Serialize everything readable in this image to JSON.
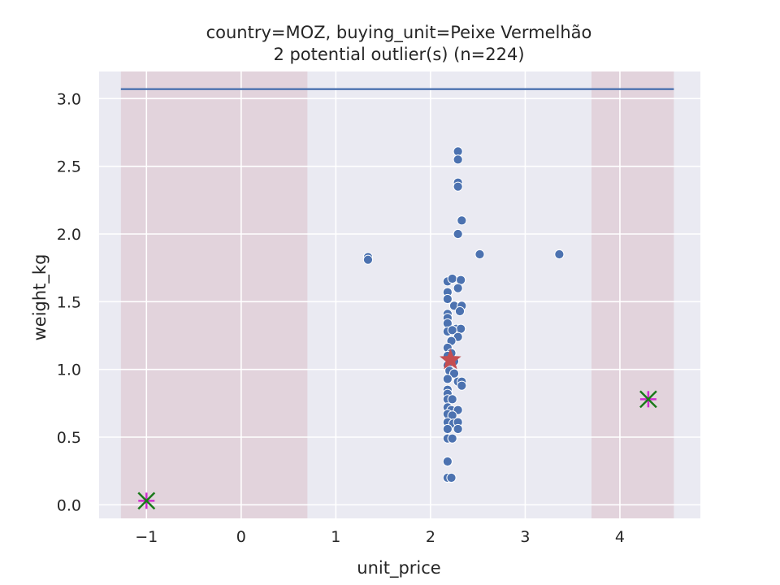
{
  "chart_data": {
    "type": "scatter",
    "title": "country=MOZ, buying_unit=Peixe Vermelhão",
    "subtitle": "2 potential outlier(s) (n=224)",
    "xlabel": "unit_price",
    "ylabel": "weight_kg",
    "xlim": [
      -1.5,
      4.85
    ],
    "ylim": [
      -0.1,
      3.2
    ],
    "xticks": [
      -1,
      0,
      1,
      2,
      3,
      4
    ],
    "xtick_labels": [
      "−1",
      "0",
      "1",
      "2",
      "3",
      "4"
    ],
    "yticks": [
      0.0,
      0.5,
      1.0,
      1.5,
      2.0,
      2.5,
      3.0
    ],
    "ytick_labels": [
      "0.0",
      "0.5",
      "1.0",
      "1.5",
      "2.0",
      "2.5",
      "3.0"
    ],
    "grid": true,
    "colors": {
      "background": "#eaeaf2",
      "grid": "#ffffff",
      "points": "#4c72b0",
      "outlier_band": "#e2d3dc",
      "reference_line": "#4c72b0",
      "median_marker": "#c44e52",
      "outlier_x": "#1a7a1a",
      "outlier_plus": "#d02ed0"
    },
    "outlier_bands": [
      {
        "x0": -1.27,
        "x1": 0.7
      },
      {
        "x0": 3.7,
        "x1": 4.57
      }
    ],
    "reference_line": {
      "y": 3.07,
      "x0": -1.27,
      "x1": 4.57
    },
    "median_marker": {
      "x": 2.21,
      "y": 1.07
    },
    "outliers": [
      {
        "x": -1.0,
        "y": 0.03
      },
      {
        "x": 4.3,
        "y": 0.78
      }
    ],
    "points": [
      {
        "x": 2.29,
        "y": 2.61
      },
      {
        "x": 2.29,
        "y": 2.55
      },
      {
        "x": 2.29,
        "y": 2.38
      },
      {
        "x": 2.29,
        "y": 2.35
      },
      {
        "x": 2.33,
        "y": 2.1
      },
      {
        "x": 2.29,
        "y": 2.0
      },
      {
        "x": 2.52,
        "y": 1.85
      },
      {
        "x": 3.36,
        "y": 1.85
      },
      {
        "x": 1.34,
        "y": 1.83
      },
      {
        "x": 1.34,
        "y": 1.81
      },
      {
        "x": 2.18,
        "y": 1.65
      },
      {
        "x": 2.23,
        "y": 1.67
      },
      {
        "x": 2.32,
        "y": 1.66
      },
      {
        "x": 2.29,
        "y": 1.6
      },
      {
        "x": 2.18,
        "y": 1.57
      },
      {
        "x": 2.18,
        "y": 1.52
      },
      {
        "x": 2.25,
        "y": 1.47
      },
      {
        "x": 2.33,
        "y": 1.47
      },
      {
        "x": 2.31,
        "y": 1.43
      },
      {
        "x": 2.18,
        "y": 1.41
      },
      {
        "x": 2.18,
        "y": 1.38
      },
      {
        "x": 2.18,
        "y": 1.34
      },
      {
        "x": 2.27,
        "y": 1.3
      },
      {
        "x": 2.32,
        "y": 1.3
      },
      {
        "x": 2.18,
        "y": 1.28
      },
      {
        "x": 2.23,
        "y": 1.29
      },
      {
        "x": 2.29,
        "y": 1.24
      },
      {
        "x": 2.22,
        "y": 1.21
      },
      {
        "x": 2.18,
        "y": 1.16
      },
      {
        "x": 2.22,
        "y": 1.12
      },
      {
        "x": 2.18,
        "y": 1.1
      },
      {
        "x": 2.25,
        "y": 1.06
      },
      {
        "x": 2.18,
        "y": 1.03
      },
      {
        "x": 2.2,
        "y": 0.99
      },
      {
        "x": 2.25,
        "y": 0.97
      },
      {
        "x": 2.18,
        "y": 0.93
      },
      {
        "x": 2.29,
        "y": 0.91
      },
      {
        "x": 2.33,
        "y": 0.91
      },
      {
        "x": 2.33,
        "y": 0.88
      },
      {
        "x": 2.18,
        "y": 0.85
      },
      {
        "x": 2.18,
        "y": 0.82
      },
      {
        "x": 2.18,
        "y": 0.78
      },
      {
        "x": 2.23,
        "y": 0.78
      },
      {
        "x": 2.18,
        "y": 0.72
      },
      {
        "x": 2.22,
        "y": 0.7
      },
      {
        "x": 2.29,
        "y": 0.7
      },
      {
        "x": 2.18,
        "y": 0.67
      },
      {
        "x": 2.23,
        "y": 0.66
      },
      {
        "x": 2.18,
        "y": 0.61
      },
      {
        "x": 2.24,
        "y": 0.6
      },
      {
        "x": 2.29,
        "y": 0.61
      },
      {
        "x": 2.18,
        "y": 0.56
      },
      {
        "x": 2.29,
        "y": 0.56
      },
      {
        "x": 2.18,
        "y": 0.49
      },
      {
        "x": 2.23,
        "y": 0.49
      },
      {
        "x": 2.18,
        "y": 0.32
      },
      {
        "x": 2.18,
        "y": 0.2
      },
      {
        "x": 2.22,
        "y": 0.2
      }
    ]
  }
}
